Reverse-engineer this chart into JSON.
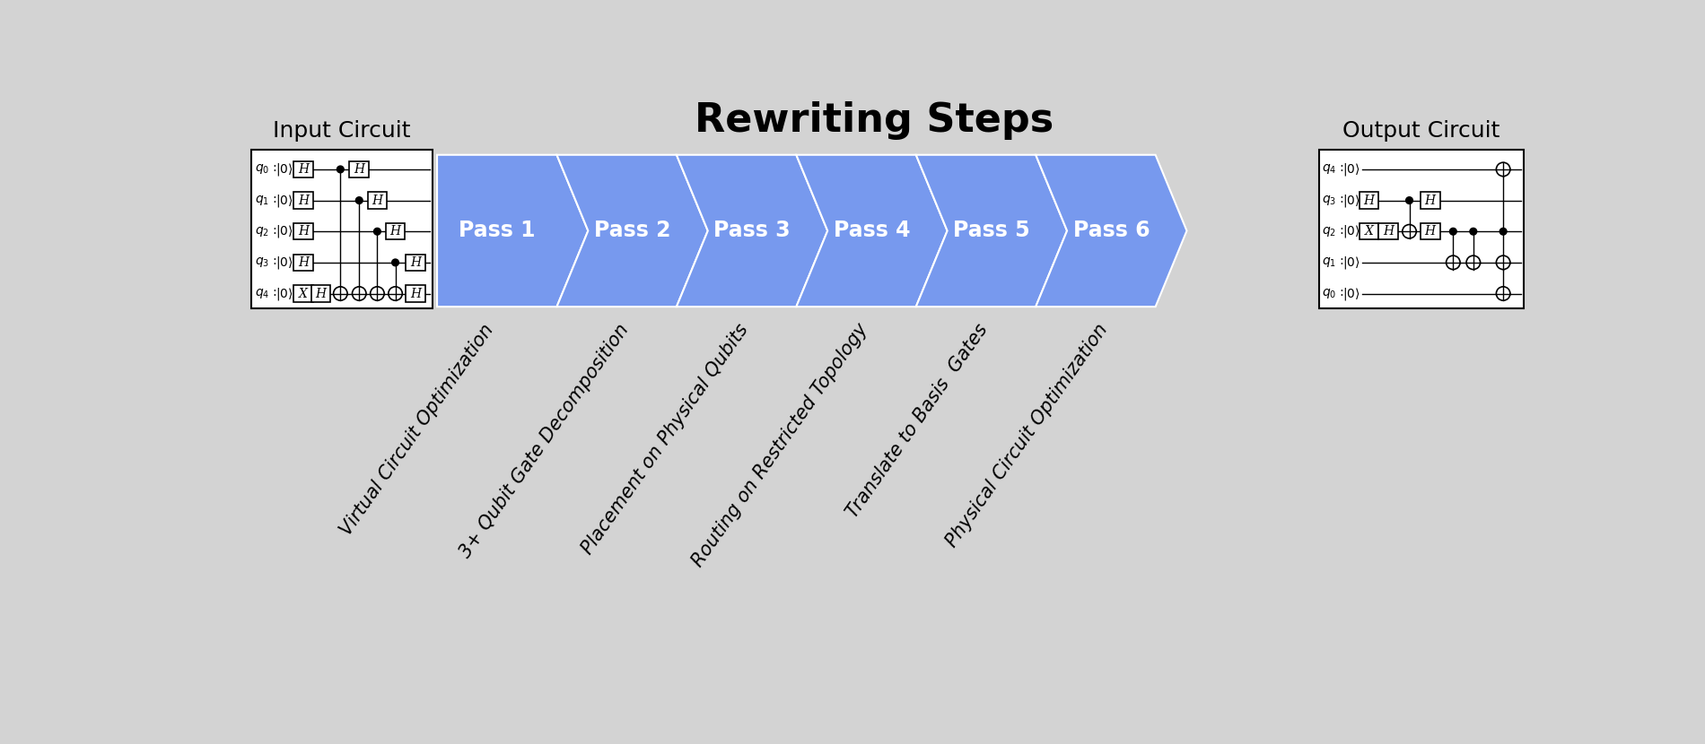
{
  "title": "Rewriting Steps",
  "title_fontsize": 32,
  "title_fontweight": "bold",
  "bg_color": "#d3d3d3",
  "passes": [
    "Pass 1",
    "Pass 2",
    "Pass 3",
    "Pass 4",
    "Pass 5",
    "Pass 6"
  ],
  "pass_labels": [
    "Virtual Circuit Optimization",
    "3+ Qubit Gate Decomposition",
    "Placement on Physical Qubits",
    "Routing on Restricted Topology",
    "Translate to Basis  Gates",
    "Physical Circuit Optimization"
  ],
  "arrow_color": "#7799ee",
  "arrow_text_color": "#ffffff",
  "pass_fontsize": 17,
  "label_fontsize": 15,
  "input_title": "Input Circuit",
  "output_title": "Output Circuit",
  "circuit_bg": "#ffffff",
  "circuit_line_color": "#000000",
  "input_qubits_labels": [
    "q_0 :",
    "q_1 :",
    "q_2 :",
    "q_3 :",
    "q_4 :"
  ],
  "output_qubits_labels": [
    "q_4 :",
    "q_3 :",
    "q_2 :",
    "q_1 :",
    "q_0 :"
  ]
}
